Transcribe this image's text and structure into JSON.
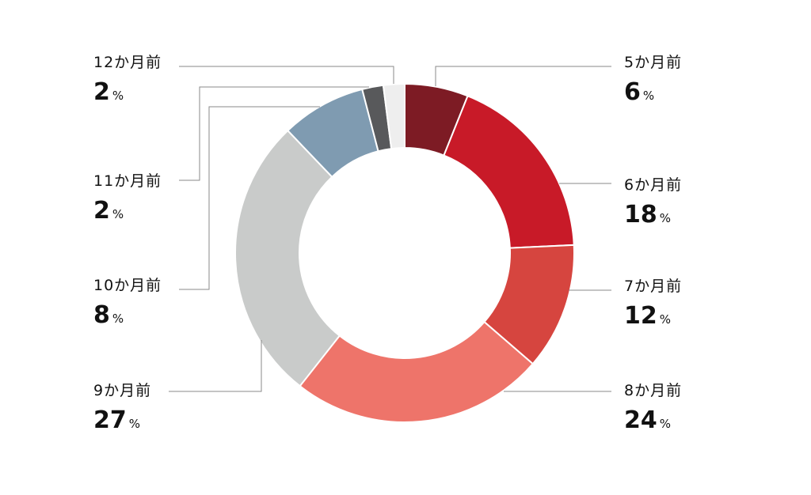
{
  "chart_data": {
    "type": "pie",
    "donut": true,
    "start_angle_deg": 0,
    "direction": "clockwise",
    "legend": "callout-labels",
    "categories": [
      "5か月前",
      "6か月前",
      "7か月前",
      "8か月前",
      "9か月前",
      "10か月前",
      "11か月前",
      "12か月前"
    ],
    "values": [
      6,
      18,
      12,
      24,
      27,
      8,
      2,
      2
    ],
    "value_suffix": "%",
    "colors": [
      "#7d1b24",
      "#c81a28",
      "#d6453f",
      "#ee746a",
      "#c9cbca",
      "#7f9bb1",
      "#58595b",
      "#eeeeee"
    ]
  }
}
